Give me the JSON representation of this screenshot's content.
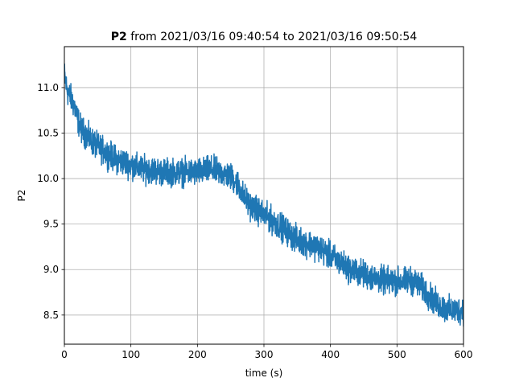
{
  "chart_data": {
    "type": "line",
    "title": {
      "bold": "P2",
      "rest": " from 2021/03/16 09:40:54 to 2021/03/16 09:50:54"
    },
    "xlabel": "time (s)",
    "ylabel": "P2",
    "xlim": [
      0,
      600
    ],
    "ylim": [
      8.18,
      11.45
    ],
    "xticks": [
      0,
      100,
      200,
      300,
      400,
      500,
      600
    ],
    "yticks": [
      8.5,
      9.0,
      9.5,
      10.0,
      10.5,
      11.0
    ],
    "xtick_labels": [
      "0",
      "100",
      "200",
      "300",
      "400",
      "500",
      "600"
    ],
    "ytick_labels": [
      "8.5",
      "9.0",
      "9.5",
      "10.0",
      "10.5",
      "11.0"
    ],
    "grid": true,
    "line_color": "#1f77b4",
    "series": [
      {
        "x": [
          0,
          2,
          5,
          10,
          15,
          20,
          25,
          30,
          40,
          50,
          60,
          70,
          80,
          90,
          100,
          110,
          120,
          130,
          140,
          150,
          160,
          170,
          180,
          190,
          200,
          210,
          220,
          230,
          240,
          250,
          260,
          270,
          280,
          290,
          300,
          310,
          320,
          330,
          340,
          350,
          360,
          370,
          380,
          390,
          400,
          410,
          420,
          430,
          440,
          450,
          460,
          470,
          480,
          490,
          500,
          510,
          520,
          530,
          540,
          550,
          560,
          570,
          580,
          590,
          600
        ],
        "y": [
          11.15,
          11.05,
          10.95,
          10.88,
          10.8,
          10.65,
          10.55,
          10.5,
          10.42,
          10.35,
          10.3,
          10.25,
          10.2,
          10.18,
          10.15,
          10.12,
          10.1,
          10.1,
          10.08,
          10.07,
          10.07,
          10.07,
          10.07,
          10.07,
          10.07,
          10.08,
          10.1,
          10.08,
          10.05,
          10.02,
          9.95,
          9.8,
          9.7,
          9.65,
          9.6,
          9.55,
          9.5,
          9.45,
          9.38,
          9.33,
          9.3,
          9.28,
          9.25,
          9.2,
          9.15,
          9.1,
          9.05,
          9.0,
          8.97,
          8.95,
          8.92,
          8.9,
          8.88,
          8.87,
          8.87,
          8.87,
          8.88,
          8.85,
          8.78,
          8.7,
          8.62,
          8.58,
          8.55,
          8.55,
          8.55
        ],
        "noise_amplitude": 0.09
      }
    ]
  }
}
